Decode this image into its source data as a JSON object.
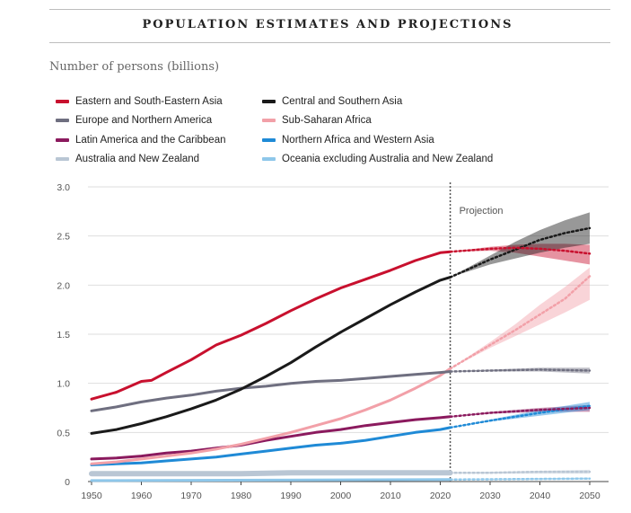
{
  "chart_data": {
    "type": "line",
    "title": "POPULATION ESTIMATES AND PROJECTIONS",
    "ylabel": "Number of persons (billions)",
    "xlabel": "",
    "xlim": [
      1950,
      2050
    ],
    "ylim": [
      0,
      3.0
    ],
    "xticks": [
      "1950",
      "1960",
      "1970",
      "1980",
      "1990",
      "2000",
      "2010",
      "2020",
      "2030",
      "2040",
      "2050"
    ],
    "yticks": [
      "0",
      "0.5",
      "1.0",
      "1.5",
      "2.0",
      "2.5",
      "3.0"
    ],
    "projection_start": 2022,
    "projection_label": "Projection",
    "series": [
      {
        "name": "Eastern and South-Eastern Asia",
        "color": "#c8102e",
        "x": [
          1950,
          1955,
          1960,
          1962,
          1965,
          1970,
          1975,
          1980,
          1985,
          1990,
          1995,
          2000,
          2005,
          2010,
          2015,
          2020,
          2022
        ],
        "values": [
          0.84,
          0.91,
          1.02,
          1.03,
          1.11,
          1.24,
          1.39,
          1.49,
          1.61,
          1.74,
          1.86,
          1.97,
          2.06,
          2.15,
          2.25,
          2.33,
          2.34
        ],
        "proj_x": [
          2022,
          2030,
          2035,
          2040,
          2045,
          2050
        ],
        "proj_values": [
          2.34,
          2.37,
          2.38,
          2.37,
          2.35,
          2.32
        ],
        "proj_low": [
          2.34,
          2.35,
          2.33,
          2.29,
          2.25,
          2.21
        ],
        "proj_high": [
          2.34,
          2.39,
          2.41,
          2.42,
          2.42,
          2.41
        ]
      },
      {
        "name": "Central and Southern Asia",
        "color": "#1a1a1a",
        "x": [
          1950,
          1955,
          1960,
          1965,
          1970,
          1975,
          1980,
          1985,
          1990,
          1995,
          2000,
          2005,
          2010,
          2015,
          2020,
          2022
        ],
        "values": [
          0.49,
          0.53,
          0.59,
          0.66,
          0.74,
          0.83,
          0.94,
          1.07,
          1.21,
          1.37,
          1.52,
          1.66,
          1.8,
          1.93,
          2.05,
          2.08
        ],
        "proj_x": [
          2022,
          2030,
          2035,
          2040,
          2045,
          2050
        ],
        "proj_values": [
          2.08,
          2.26,
          2.36,
          2.46,
          2.53,
          2.58
        ],
        "proj_low": [
          2.08,
          2.21,
          2.27,
          2.33,
          2.38,
          2.42
        ],
        "proj_high": [
          2.08,
          2.3,
          2.44,
          2.56,
          2.66,
          2.74
        ]
      },
      {
        "name": "Europe and Northern America",
        "color": "#6f6f80",
        "x": [
          1950,
          1955,
          1960,
          1965,
          1970,
          1975,
          1980,
          1985,
          1990,
          1995,
          2000,
          2005,
          2010,
          2015,
          2020,
          2022
        ],
        "values": [
          0.72,
          0.76,
          0.81,
          0.85,
          0.88,
          0.92,
          0.95,
          0.97,
          1.0,
          1.02,
          1.03,
          1.05,
          1.07,
          1.09,
          1.11,
          1.12
        ],
        "proj_x": [
          2022,
          2030,
          2040,
          2050
        ],
        "proj_values": [
          1.12,
          1.13,
          1.14,
          1.13
        ],
        "proj_low": [
          1.12,
          1.12,
          1.12,
          1.1
        ],
        "proj_high": [
          1.12,
          1.14,
          1.16,
          1.16
        ]
      },
      {
        "name": "Sub-Saharan Africa",
        "color": "#f2a0a8",
        "x": [
          1950,
          1955,
          1960,
          1965,
          1970,
          1975,
          1980,
          1985,
          1990,
          1995,
          2000,
          2005,
          2010,
          2015,
          2020,
          2022
        ],
        "values": [
          0.18,
          0.2,
          0.23,
          0.26,
          0.29,
          0.33,
          0.38,
          0.44,
          0.5,
          0.57,
          0.64,
          0.73,
          0.83,
          0.95,
          1.08,
          1.15
        ],
        "proj_x": [
          2022,
          2030,
          2035,
          2040,
          2045,
          2050
        ],
        "proj_values": [
          1.15,
          1.39,
          1.54,
          1.7,
          1.86,
          2.09
        ],
        "proj_low": [
          1.15,
          1.36,
          1.48,
          1.6,
          1.72,
          1.85
        ],
        "proj_high": [
          1.15,
          1.42,
          1.6,
          1.8,
          1.98,
          2.18
        ]
      },
      {
        "name": "Latin America and the Caribbean",
        "color": "#8b1a5e",
        "x": [
          1950,
          1955,
          1960,
          1965,
          1970,
          1975,
          1980,
          1985,
          1990,
          1995,
          2000,
          2005,
          2010,
          2015,
          2020,
          2022
        ],
        "values": [
          0.23,
          0.24,
          0.26,
          0.29,
          0.31,
          0.34,
          0.37,
          0.42,
          0.46,
          0.5,
          0.53,
          0.57,
          0.6,
          0.63,
          0.65,
          0.66
        ],
        "proj_x": [
          2022,
          2030,
          2040,
          2050
        ],
        "proj_values": [
          0.66,
          0.7,
          0.73,
          0.75
        ],
        "proj_low": [
          0.66,
          0.69,
          0.71,
          0.71
        ],
        "proj_high": [
          0.66,
          0.71,
          0.75,
          0.78
        ]
      },
      {
        "name": "Northern Africa and Western Asia",
        "color": "#1f8ad6",
        "x": [
          1950,
          1955,
          1960,
          1965,
          1970,
          1975,
          1980,
          1985,
          1990,
          1995,
          2000,
          2005,
          2010,
          2015,
          2020,
          2022
        ],
        "values": [
          0.17,
          0.18,
          0.19,
          0.21,
          0.23,
          0.25,
          0.28,
          0.31,
          0.34,
          0.37,
          0.39,
          0.42,
          0.46,
          0.5,
          0.53,
          0.55
        ],
        "proj_x": [
          2022,
          2030,
          2040,
          2050
        ],
        "proj_values": [
          0.55,
          0.62,
          0.7,
          0.77
        ],
        "proj_low": [
          0.55,
          0.61,
          0.67,
          0.73
        ],
        "proj_high": [
          0.55,
          0.63,
          0.73,
          0.81
        ]
      },
      {
        "name": "Australia and New Zealand",
        "color": "#b9c6d4",
        "x": [
          1950,
          1960,
          1970,
          1980,
          1990,
          2000,
          2010,
          2020,
          2022
        ],
        "values": [
          0.08,
          0.08,
          0.08,
          0.08,
          0.09,
          0.09,
          0.09,
          0.09,
          0.09
        ],
        "proj_x": [
          2022,
          2030,
          2040,
          2050
        ],
        "proj_values": [
          0.09,
          0.09,
          0.1,
          0.1
        ],
        "proj_low": [
          0.09,
          0.08,
          0.08,
          0.08
        ],
        "proj_high": [
          0.09,
          0.1,
          0.11,
          0.12
        ]
      },
      {
        "name": "Oceania excluding Australia and New Zealand",
        "color": "#8ec7ea",
        "x": [
          1950,
          2022
        ],
        "values": [
          0.01,
          0.02
        ],
        "proj_x": [
          2022,
          2050
        ],
        "proj_values": [
          0.02,
          0.03
        ],
        "proj_low": [
          0.02,
          0.02
        ],
        "proj_high": [
          0.02,
          0.04
        ]
      }
    ],
    "legend_order": [
      0,
      1,
      2,
      3,
      4,
      5,
      6,
      7
    ]
  }
}
